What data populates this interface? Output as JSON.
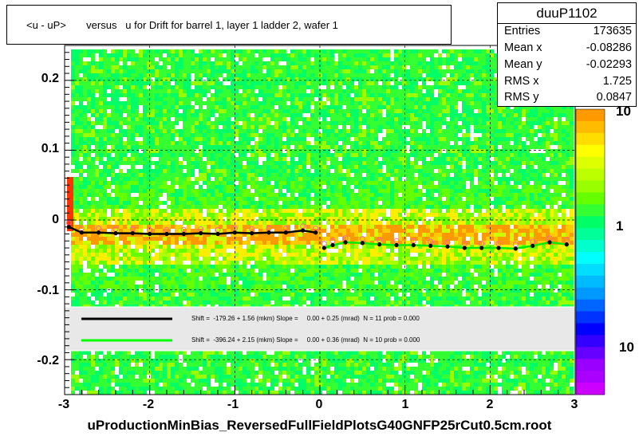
{
  "chart_data": {
    "type": "heatmap",
    "title": "<u - uP>       versus   u for Drift for barrel 1, layer 1 ladder 2, wafer 1",
    "xlim": [
      -3,
      3
    ],
    "ylim": [
      -0.25,
      0.25
    ],
    "x_ticks": [
      "-3",
      "-2",
      "-1",
      "0",
      "1",
      "2",
      "3"
    ],
    "y_ticks": [
      "0.2",
      "0.1",
      "0",
      "-0.1",
      "-0.2"
    ],
    "z_scale": "log",
    "z_ticks": [
      "10",
      "1",
      "10"
    ],
    "grid": true,
    "stats": {
      "name": "duuP1102",
      "rows": [
        {
          "label": "Entries",
          "value": "173635"
        },
        {
          "label": "Mean x",
          "value": "-0.08286"
        },
        {
          "label": "Mean y",
          "value": "-0.02293"
        },
        {
          "label": "RMS x",
          "value": "1.725"
        },
        {
          "label": "RMS y",
          "value": "0.0847"
        }
      ]
    },
    "legend": [
      {
        "color": "#000000",
        "text": "Shift =  -179.26 + 1.56 (mkm) Slope =     0.00 + 0.25 (mrad)  N = 11 prob = 0.000"
      },
      {
        "color": "#00ff00",
        "text": "Shift =  -396.24 + 2.15 (mkm) Slope =     0.00 + 0.36 (mrad)  N = 10 prob = 0.000"
      }
    ],
    "series": [
      {
        "name": "profile u<0",
        "x": [
          -2.95,
          -2.8,
          -2.6,
          -2.4,
          -2.2,
          -2.0,
          -1.8,
          -1.6,
          -1.4,
          -1.2,
          -1.0,
          -0.8,
          -0.6,
          -0.4,
          -0.2,
          -0.05
        ],
        "y": [
          -0.01,
          -0.018,
          -0.018,
          -0.019,
          -0.019,
          -0.02,
          -0.02,
          -0.02,
          -0.019,
          -0.02,
          -0.018,
          -0.019,
          -0.018,
          -0.018,
          -0.015,
          -0.018
        ]
      },
      {
        "name": "profile u>0",
        "x": [
          0.05,
          0.15,
          0.3,
          0.5,
          0.7,
          0.9,
          1.1,
          1.3,
          1.5,
          1.7,
          1.9,
          2.1,
          2.3,
          2.5,
          2.7,
          2.9
        ],
        "y": [
          -0.04,
          -0.036,
          -0.032,
          -0.033,
          -0.035,
          -0.036,
          -0.036,
          -0.037,
          -0.038,
          -0.04,
          -0.04,
          -0.04,
          -0.041,
          -0.037,
          -0.032,
          -0.035
        ]
      }
    ],
    "footer": "uProductionMinBias_ReversedFullFieldPlotsG40GNFP25rCut0.5cm.root"
  }
}
